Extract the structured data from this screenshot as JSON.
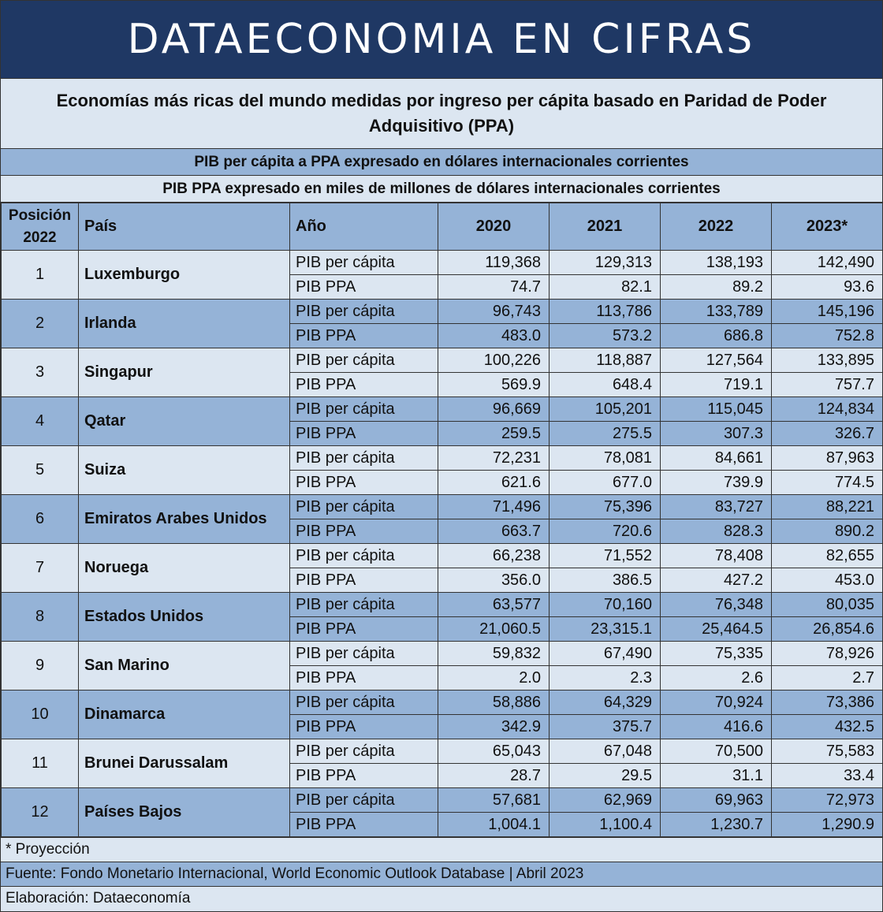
{
  "banner": "DATAECONOMIA EN CIFRAS",
  "subtitle": "Economías más ricas del mundo medidas por ingreso per cápita basado en Paridad de Poder Adquisitivo (PPA)",
  "note1": "PIB per cápita a PPA expresado en dólares internacionales corrientes",
  "note2": "PIB PPA expresado en miles de millones de dólares internacionales corrientes",
  "headers": {
    "posicion_line1": "Posición",
    "posicion_line2": "2022",
    "pais": "País",
    "anio": "Año",
    "y2020": "2020",
    "y2021": "2021",
    "y2022": "2022",
    "y2023": "2023*"
  },
  "rows": [
    {
      "pos": "1",
      "country": "Luxemburgo",
      "a_label": "PIB per cápita",
      "a": [
        "119,368",
        "129,313",
        "138,193",
        "142,490"
      ],
      "b_label": "PIB PPA",
      "b": [
        "74.7",
        "82.1",
        "89.2",
        "93.6"
      ]
    },
    {
      "pos": "2",
      "country": "Irlanda",
      "a_label": "PIB per cápita",
      "a": [
        "96,743",
        "113,786",
        "133,789",
        "145,196"
      ],
      "b_label": "PIB PPA",
      "b": [
        "483.0",
        "573.2",
        "686.8",
        "752.8"
      ]
    },
    {
      "pos": "3",
      "country": "Singapur",
      "a_label": "PIB per cápita",
      "a": [
        "100,226",
        "118,887",
        "127,564",
        "133,895"
      ],
      "b_label": "PIB PPA",
      "b": [
        "569.9",
        "648.4",
        "719.1",
        "757.7"
      ]
    },
    {
      "pos": "4",
      "country": "Qatar",
      "a_label": "PIB per cápita",
      "a": [
        "96,669",
        "105,201",
        "115,045",
        "124,834"
      ],
      "b_label": "PIB PPA",
      "b": [
        "259.5",
        "275.5",
        "307.3",
        "326.7"
      ]
    },
    {
      "pos": "5",
      "country": "Suiza",
      "a_label": "PIB per cápita",
      "a": [
        "72,231",
        "78,081",
        "84,661",
        "87,963"
      ],
      "b_label": "PIB PPA",
      "b": [
        "621.6",
        "677.0",
        "739.9",
        "774.5"
      ]
    },
    {
      "pos": "6",
      "country": "Emiratos Arabes Unidos",
      "a_label": "PIB per cápita",
      "a": [
        "71,496",
        "75,396",
        "83,727",
        "88,221"
      ],
      "b_label": "PIB PPA",
      "b": [
        "663.7",
        "720.6",
        "828.3",
        "890.2"
      ]
    },
    {
      "pos": "7",
      "country": "Noruega",
      "a_label": "PIB per cápita",
      "a": [
        "66,238",
        "71,552",
        "78,408",
        "82,655"
      ],
      "b_label": "PIB PPA",
      "b": [
        "356.0",
        "386.5",
        "427.2",
        "453.0"
      ]
    },
    {
      "pos": "8",
      "country": "Estados Unidos",
      "a_label": "PIB per cápita",
      "a": [
        "63,577",
        "70,160",
        "76,348",
        "80,035"
      ],
      "b_label": "PIB PPA",
      "b": [
        "21,060.5",
        "23,315.1",
        "25,464.5",
        "26,854.6"
      ]
    },
    {
      "pos": "9",
      "country": "San Marino",
      "a_label": "PIB per cápita",
      "a": [
        "59,832",
        "67,490",
        "75,335",
        "78,926"
      ],
      "b_label": "PIB PPA",
      "b": [
        "2.0",
        "2.3",
        "2.6",
        "2.7"
      ]
    },
    {
      "pos": "10",
      "country": "Dinamarca",
      "a_label": "PIB per cápita",
      "a": [
        "58,886",
        "64,329",
        "70,924",
        "73,386"
      ],
      "b_label": "PIB PPA",
      "b": [
        "342.9",
        "375.7",
        "416.6",
        "432.5"
      ]
    },
    {
      "pos": "11",
      "country": "Brunei Darussalam",
      "a_label": "PIB per cápita",
      "a": [
        "65,043",
        "67,048",
        "70,500",
        "75,583"
      ],
      "b_label": "PIB PPA",
      "b": [
        "28.7",
        "29.5",
        "31.1",
        "33.4"
      ]
    },
    {
      "pos": "12",
      "country": "Países Bajos",
      "a_label": "PIB per cápita",
      "a": [
        "57,681",
        "62,969",
        "69,963",
        "72,973"
      ],
      "b_label": "PIB PPA",
      "b": [
        "1,004.1",
        "1,100.4",
        "1,230.7",
        "1,290.9"
      ]
    }
  ],
  "footer": {
    "proyeccion": "* Proyección",
    "fuente": "Fuente: Fondo Monetario Internacional, World Economic Outlook Database | Abril 2023",
    "elaboracion": "Elaboración: Dataeconomía"
  }
}
